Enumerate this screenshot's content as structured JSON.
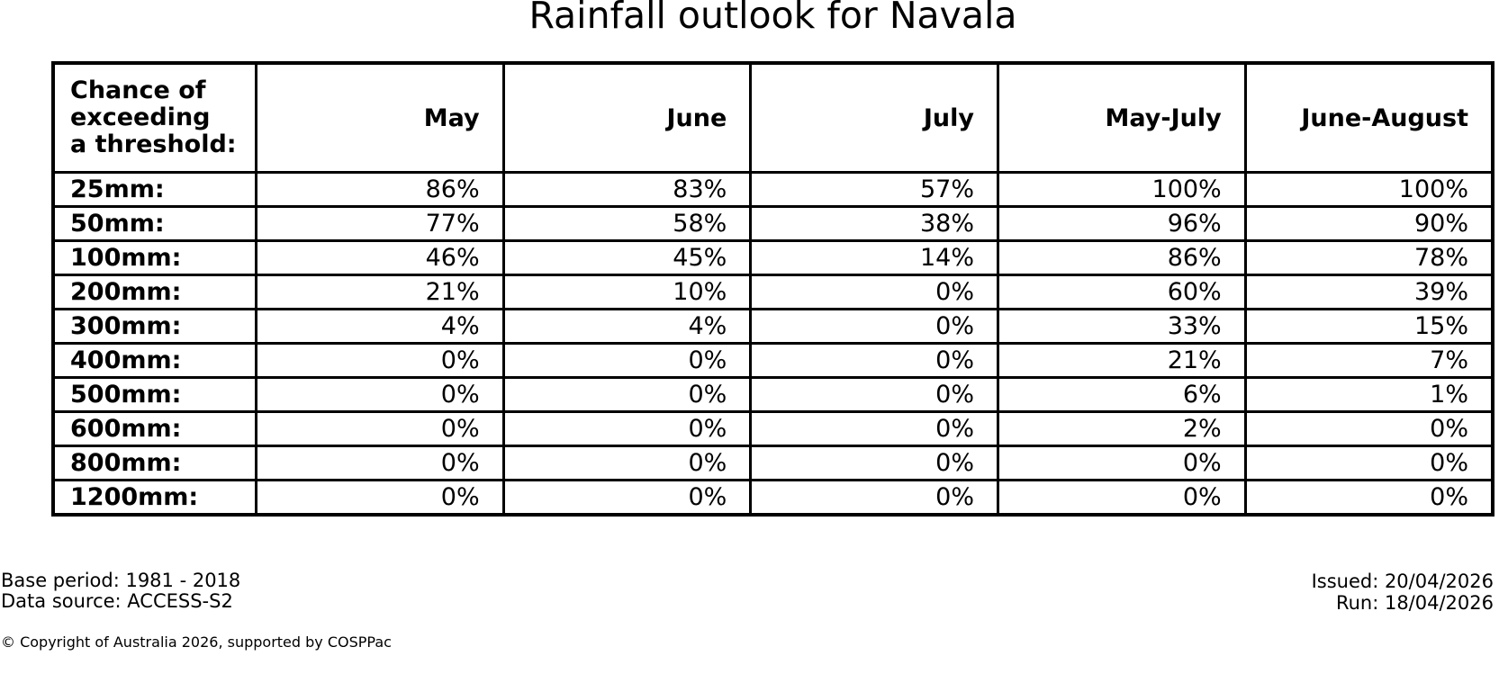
{
  "title": "Rainfall outlook for Navala",
  "table": {
    "corner": "Chance of\nexceeding\na threshold:",
    "columns": [
      "May",
      "June",
      "July",
      "May-July",
      "June-August"
    ],
    "rows": [
      {
        "label": "25mm:",
        "values": [
          "86%",
          "83%",
          "57%",
          "100%",
          "100%"
        ]
      },
      {
        "label": "50mm:",
        "values": [
          "77%",
          "58%",
          "38%",
          "96%",
          "90%"
        ]
      },
      {
        "label": "100mm:",
        "values": [
          "46%",
          "45%",
          "14%",
          "86%",
          "78%"
        ]
      },
      {
        "label": "200mm:",
        "values": [
          "21%",
          "10%",
          "0%",
          "60%",
          "39%"
        ]
      },
      {
        "label": "300mm:",
        "values": [
          "4%",
          "4%",
          "0%",
          "33%",
          "15%"
        ]
      },
      {
        "label": "400mm:",
        "values": [
          "0%",
          "0%",
          "0%",
          "21%",
          "7%"
        ]
      },
      {
        "label": "500mm:",
        "values": [
          "0%",
          "0%",
          "0%",
          "6%",
          "1%"
        ]
      },
      {
        "label": "600mm:",
        "values": [
          "0%",
          "0%",
          "0%",
          "2%",
          "0%"
        ]
      },
      {
        "label": "800mm:",
        "values": [
          "0%",
          "0%",
          "0%",
          "0%",
          "0%"
        ]
      },
      {
        "label": "1200mm:",
        "values": [
          "0%",
          "0%",
          "0%",
          "0%",
          "0%"
        ]
      }
    ]
  },
  "footer": {
    "base_period": "Base period: 1981 - 2018",
    "data_source": "Data source: ACCESS-S2",
    "issued": "Issued: 20/04/2026",
    "run": "Run: 18/04/2026",
    "copyright": "© Copyright of Australia 2026, supported by COSPPac"
  },
  "chart_data": {
    "type": "table",
    "title": "Rainfall outlook for Navala",
    "row_header_label": "Chance of exceeding a threshold:",
    "columns": [
      "May",
      "June",
      "July",
      "May-July",
      "June-August"
    ],
    "thresholds_mm": [
      25,
      50,
      100,
      200,
      300,
      400,
      500,
      600,
      800,
      1200
    ],
    "values_percent": [
      [
        86,
        83,
        57,
        100,
        100
      ],
      [
        77,
        58,
        38,
        96,
        90
      ],
      [
        46,
        45,
        14,
        86,
        78
      ],
      [
        21,
        10,
        0,
        60,
        39
      ],
      [
        4,
        4,
        0,
        33,
        15
      ],
      [
        0,
        0,
        0,
        21,
        7
      ],
      [
        0,
        0,
        0,
        6,
        1
      ],
      [
        0,
        0,
        0,
        2,
        0
      ],
      [
        0,
        0,
        0,
        0,
        0
      ],
      [
        0,
        0,
        0,
        0,
        0
      ]
    ],
    "annotations": [
      "Base period: 1981 - 2018",
      "Data source: ACCESS-S2",
      "Issued: 20/04/2026",
      "Run: 18/04/2026",
      "© Copyright of Australia 2026, supported by COSPPac"
    ]
  }
}
